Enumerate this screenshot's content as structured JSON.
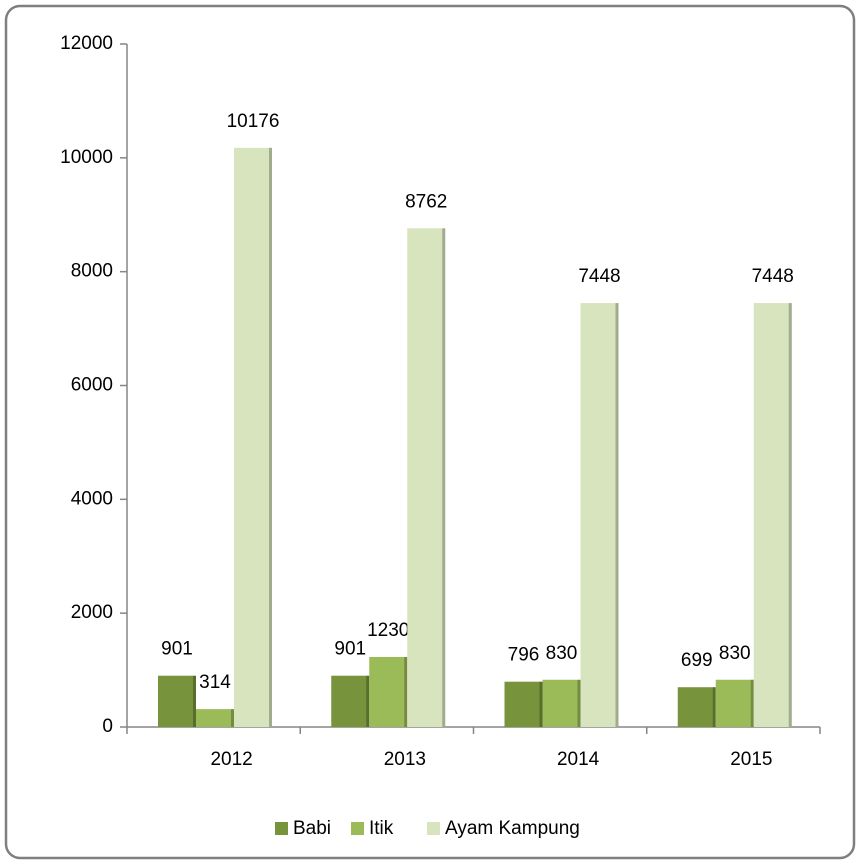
{
  "chart_data": {
    "type": "bar",
    "categories": [
      "2012",
      "2013",
      "2014",
      "2015"
    ],
    "series": [
      {
        "name": "Babi",
        "color": "#77933c",
        "values": [
          901,
          901,
          796,
          699
        ]
      },
      {
        "name": "Itik",
        "color": "#9bbb59",
        "values": [
          314,
          1230,
          830,
          830
        ]
      },
      {
        "name": "Ayam Kampung",
        "color": "#d7e4bd",
        "values": [
          10176,
          8762,
          7448,
          7448
        ]
      }
    ],
    "ylim": [
      0,
      12000
    ],
    "yticks": [
      0,
      2000,
      4000,
      6000,
      8000,
      10000,
      12000
    ],
    "legend": "bottom"
  }
}
